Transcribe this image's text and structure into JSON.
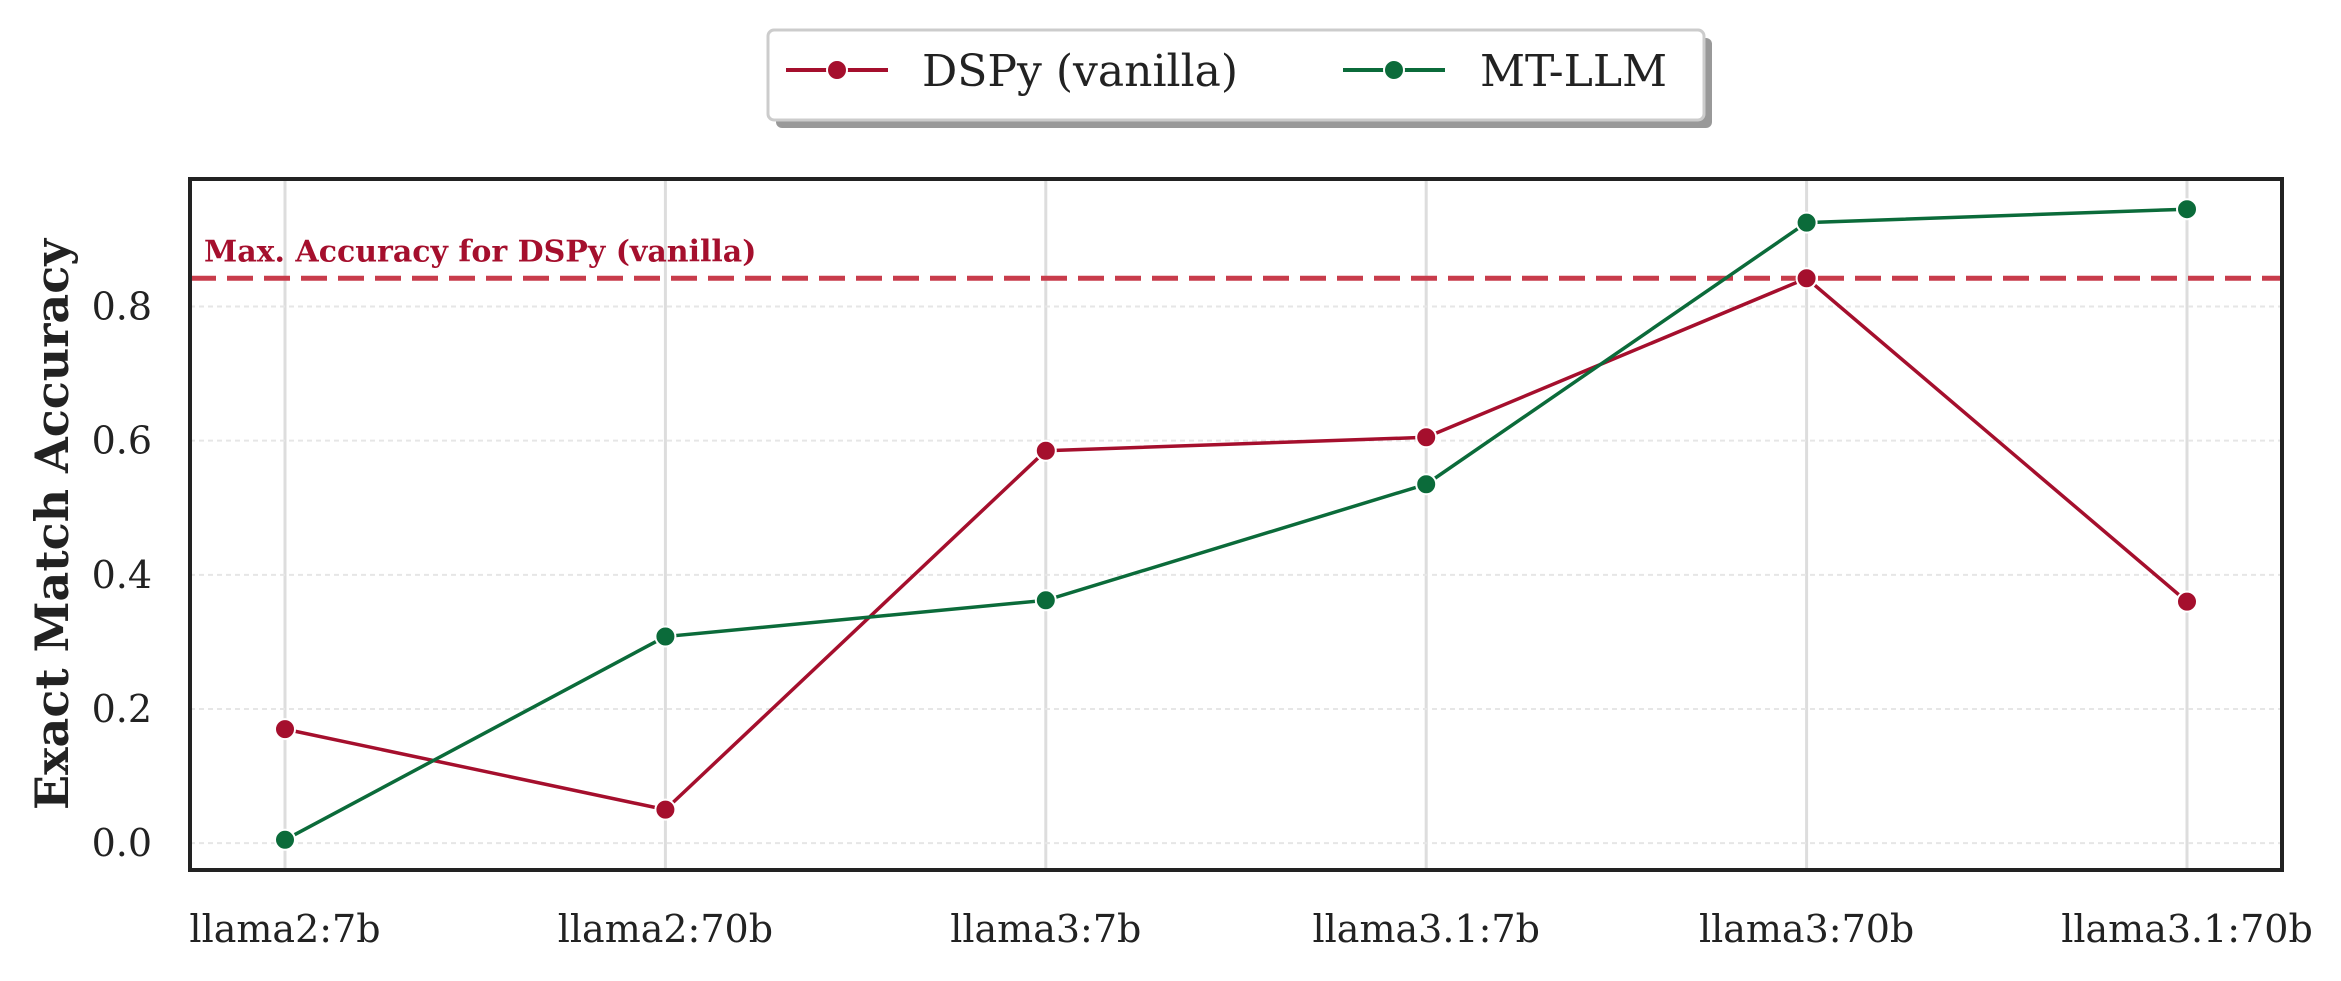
{
  "chart_data": {
    "type": "line",
    "categories": [
      "llama2:7b",
      "llama2:70b",
      "llama3:7b",
      "llama3.1:7b",
      "llama3:70b",
      "llama3.1:70b"
    ],
    "series": [
      {
        "name": "DSPy (vanilla)",
        "color": "#a50f2d",
        "values": [
          0.17,
          0.05,
          0.585,
          0.605,
          0.842,
          0.36
        ]
      },
      {
        "name": "MT-LLM",
        "color": "#0b6b3a",
        "values": [
          0.005,
          0.308,
          0.362,
          0.535,
          0.925,
          0.945
        ]
      }
    ],
    "ylabel": "Exact Match Accuracy",
    "xlabel": "",
    "ylim": [
      -0.04,
      0.99
    ],
    "yticks": [
      0.0,
      0.2,
      0.4,
      0.6,
      0.8
    ],
    "ytick_labels": [
      "0.0",
      "0.2",
      "0.4",
      "0.6",
      "0.8"
    ],
    "reference_line": {
      "value": 0.842,
      "label": "Max. Accuracy for DSPy (vanilla)",
      "color": "#c83c4b",
      "style": "dashed"
    },
    "legend": {
      "position": "top-center",
      "ncol": 2
    },
    "grid": true
  }
}
